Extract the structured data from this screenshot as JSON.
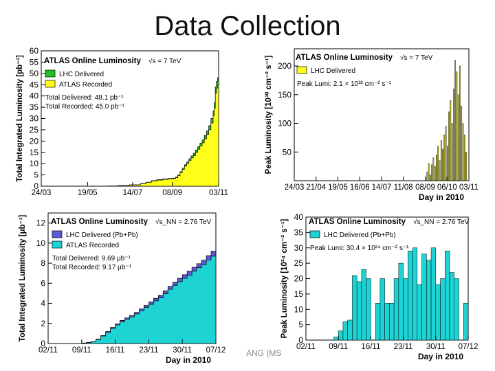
{
  "slide": {
    "title": "Data Collection",
    "footer": "ANG (MS"
  },
  "colors": {
    "yellow": "#ffff1a",
    "green": "#22c022",
    "cyan": "#1ed3d3",
    "blue": "#5b5bd6"
  },
  "chart_data": [
    {
      "type": "area",
      "id": "pp-integrated",
      "title": "ATLAS Online Luminosity",
      "energy": "√s = 7 TeV",
      "ylabel": "Total Integrated Luminosity [pb⁻¹]",
      "xlabel": "",
      "xlim": [
        0,
        161
      ],
      "ylim": [
        0,
        60
      ],
      "yticks": [
        0,
        5,
        10,
        15,
        20,
        25,
        30,
        35,
        40,
        45,
        50,
        55,
        60
      ],
      "xticks": [
        {
          "x": 0,
          "label": "24/03"
        },
        {
          "x": 42,
          "label": "19/05"
        },
        {
          "x": 83,
          "label": "14/07"
        },
        {
          "x": 119,
          "label": "08/09"
        },
        {
          "x": 161,
          "label": "03/11"
        }
      ],
      "legend": [
        {
          "name": "LHC Delivered",
          "color": "#22c022"
        },
        {
          "name": "ATLAS Recorded",
          "color": "#ffff1a"
        }
      ],
      "notes": [
        "Total Delivered: 48.1 pb⁻¹",
        "Total Recorded: 45.0 pb⁻¹"
      ],
      "series": [
        {
          "name": "LHC Delivered",
          "x": [
            0,
            20,
            40,
            60,
            70,
            80,
            90,
            95,
            100,
            105,
            110,
            115,
            118,
            120,
            122,
            124,
            126,
            128,
            130,
            132,
            134,
            136,
            138,
            140,
            142,
            144,
            146,
            148,
            150,
            152,
            154,
            156,
            157,
            158,
            159,
            160,
            161
          ],
          "values": [
            0,
            0.001,
            0.02,
            0.1,
            0.3,
            0.6,
            1.2,
            1.8,
            2.5,
            2.9,
            3.2,
            3.4,
            3.5,
            3.6,
            4.0,
            5.0,
            6.4,
            8.0,
            9.5,
            10.8,
            12.2,
            13.4,
            14.6,
            16.0,
            17.5,
            19.0,
            20.5,
            22.5,
            24.5,
            26.8,
            30.0,
            33.5,
            37.0,
            44.0,
            46.5,
            48.1,
            48.1
          ]
        },
        {
          "name": "ATLAS Recorded",
          "x": [
            0,
            20,
            40,
            60,
            70,
            80,
            90,
            95,
            100,
            105,
            110,
            115,
            118,
            120,
            122,
            124,
            126,
            128,
            130,
            132,
            134,
            136,
            138,
            140,
            142,
            144,
            146,
            148,
            150,
            152,
            154,
            156,
            157,
            158,
            159,
            160,
            161
          ],
          "values": [
            0,
            0.001,
            0.02,
            0.1,
            0.28,
            0.55,
            1.1,
            1.7,
            2.3,
            2.7,
            3.0,
            3.2,
            3.3,
            3.4,
            3.8,
            4.7,
            6.0,
            7.5,
            8.9,
            10.1,
            11.4,
            12.5,
            13.6,
            15.0,
            16.4,
            17.8,
            19.2,
            21.0,
            22.9,
            25.0,
            28.0,
            31.3,
            34.6,
            41.2,
            43.5,
            45.0,
            45.0
          ]
        }
      ]
    },
    {
      "type": "bar",
      "id": "pp-peak",
      "title": "ATLAS Online Luminosity",
      "energy": "√s = 7 TeV",
      "ylabel": "Peak Luminosity [10³⁰ cm⁻² s⁻¹]",
      "xlabel": "Day in 2010",
      "xlim": [
        0,
        224
      ],
      "ylim": [
        0,
        230
      ],
      "yticks": [
        50,
        100,
        150,
        200
      ],
      "xticks": [
        {
          "x": 0,
          "label": "24/03"
        },
        {
          "x": 28,
          "label": "21/04"
        },
        {
          "x": 56,
          "label": "19/05"
        },
        {
          "x": 84,
          "label": "16/06"
        },
        {
          "x": 112,
          "label": "14/07"
        },
        {
          "x": 140,
          "label": "11/08"
        },
        {
          "x": 168,
          "label": "08/09"
        },
        {
          "x": 196,
          "label": "06/10"
        },
        {
          "x": 224,
          "label": "03/11"
        }
      ],
      "legend": [
        {
          "name": "LHC Delivered",
          "color": "#ffff1a"
        }
      ],
      "notes": [
        "Peak Lumi: 2.1 × 10³² cm⁻² s⁻¹"
      ],
      "series": [
        {
          "name": "LHC Delivered",
          "x": [
            170,
            172,
            174,
            176,
            178,
            180,
            182,
            184,
            186,
            188,
            190,
            192,
            194,
            196,
            198,
            200,
            202,
            204,
            206,
            208,
            210,
            212,
            214,
            216,
            218,
            220
          ],
          "values": [
            15,
            30,
            10,
            28,
            40,
            25,
            45,
            60,
            35,
            70,
            55,
            80,
            95,
            60,
            120,
            140,
            100,
            160,
            210,
            190,
            150,
            200,
            130,
            100,
            80,
            50
          ]
        }
      ]
    },
    {
      "type": "area",
      "id": "pbpb-integrated",
      "title": "ATLAS Online Luminosity",
      "energy": "√s_NN = 2.76 TeV",
      "ylabel": "Total Integrated Luminosity [μb⁻¹]",
      "xlabel": "Day in 2010",
      "xlim": [
        0,
        35
      ],
      "ylim": [
        0,
        13
      ],
      "yticks": [
        0,
        2,
        4,
        6,
        8,
        10,
        12
      ],
      "xticks": [
        {
          "x": 0,
          "label": "02/11"
        },
        {
          "x": 7,
          "label": "09/11"
        },
        {
          "x": 14,
          "label": "16/11"
        },
        {
          "x": 21,
          "label": "23/11"
        },
        {
          "x": 28,
          "label": "30/11"
        },
        {
          "x": 35,
          "label": "07/12"
        }
      ],
      "legend": [
        {
          "name": "LHC Delivered (Pb+Pb)",
          "color": "#5b5bd6"
        },
        {
          "name": "ATLAS Recorded",
          "color": "#1ed3d3"
        }
      ],
      "notes": [
        "Total Delivered: 9.69 μb⁻¹",
        "Total Recorded: 9.17 μb⁻¹"
      ],
      "series": [
        {
          "name": "LHC Delivered (Pb+Pb)",
          "x": [
            0,
            4,
            6,
            7,
            8,
            9,
            10,
            11,
            12,
            13,
            14,
            15,
            16,
            17,
            18,
            19,
            20,
            21,
            22,
            23,
            24,
            25,
            26,
            27,
            28,
            29,
            30,
            31,
            32,
            33,
            34,
            35
          ],
          "values": [
            0,
            0.002,
            0.01,
            0.05,
            0.12,
            0.2,
            0.45,
            0.8,
            1.2,
            1.6,
            1.95,
            2.3,
            2.55,
            2.8,
            3.1,
            3.45,
            3.8,
            4.15,
            4.5,
            4.8,
            5.25,
            5.7,
            6.1,
            6.5,
            6.85,
            7.2,
            7.6,
            7.95,
            8.3,
            8.75,
            9.2,
            9.69
          ]
        },
        {
          "name": "ATLAS Recorded",
          "x": [
            0,
            4,
            6,
            7,
            8,
            9,
            10,
            11,
            12,
            13,
            14,
            15,
            16,
            17,
            18,
            19,
            20,
            21,
            22,
            23,
            24,
            25,
            26,
            27,
            28,
            29,
            30,
            31,
            32,
            33,
            34,
            35
          ],
          "values": [
            0,
            0.002,
            0.01,
            0.04,
            0.1,
            0.18,
            0.4,
            0.75,
            1.1,
            1.5,
            1.85,
            2.15,
            2.4,
            2.65,
            2.95,
            3.25,
            3.6,
            3.9,
            4.25,
            4.55,
            4.95,
            5.4,
            5.8,
            6.15,
            6.5,
            6.8,
            7.2,
            7.55,
            7.85,
            8.3,
            8.7,
            9.17
          ]
        }
      ]
    },
    {
      "type": "bar",
      "id": "pbpb-peak",
      "title": "ATLAS Online Luminosity",
      "energy": "√s_NN = 2.76 TeV",
      "ylabel": "Peak Luminosity [10²⁴ cm⁻² s⁻¹]",
      "xlabel": "Day in 2010",
      "xlim": [
        0,
        35
      ],
      "ylim": [
        0,
        40
      ],
      "yticks": [
        0,
        5,
        10,
        15,
        20,
        25,
        30,
        35,
        40
      ],
      "xticks": [
        {
          "x": 0,
          "label": "02/11"
        },
        {
          "x": 7,
          "label": "09/11"
        },
        {
          "x": 14,
          "label": "16/11"
        },
        {
          "x": 21,
          "label": "23/11"
        },
        {
          "x": 28,
          "label": "30/11"
        },
        {
          "x": 35,
          "label": "07/12"
        }
      ],
      "legend": [
        {
          "name": "LHC Delivered (Pb+Pb)",
          "color": "#1ed3d3"
        }
      ],
      "notes": [
        "Peak Lumi: 30.4 × 10²⁴ cm⁻² s⁻¹"
      ],
      "series": [
        {
          "name": "LHC Delivered (Pb+Pb)",
          "x": [
            6,
            7,
            8,
            9,
            10,
            11,
            12,
            13,
            15,
            16,
            17,
            18,
            19,
            20,
            21,
            22,
            23,
            24,
            25,
            26,
            27,
            28,
            29,
            30,
            31,
            32,
            34
          ],
          "values": [
            1,
            3,
            6,
            6.5,
            21,
            19,
            23,
            20,
            12,
            20,
            12,
            12,
            20,
            25,
            20,
            29,
            30,
            18,
            28,
            26,
            30,
            18,
            20,
            29,
            22,
            20,
            12
          ]
        }
      ]
    }
  ]
}
